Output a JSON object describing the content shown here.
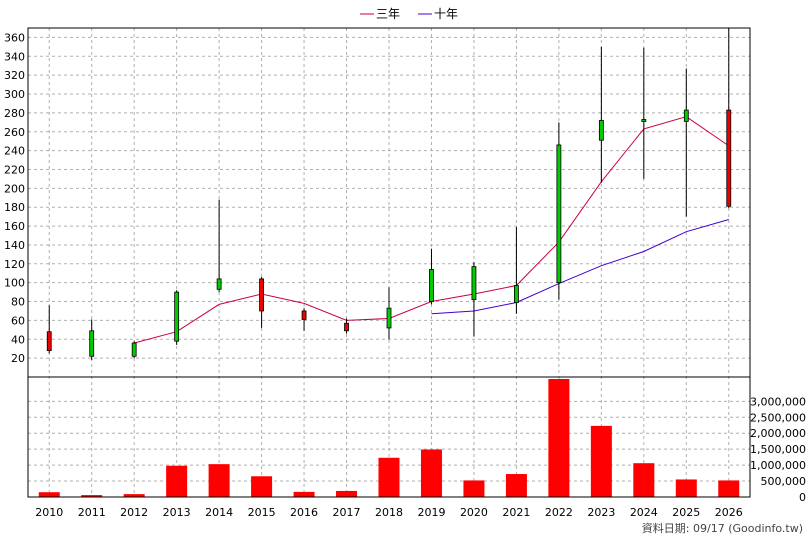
{
  "chart_data": {
    "type": "candlestick",
    "categories": [
      "2010",
      "2011",
      "2012",
      "2013",
      "2014",
      "2015",
      "2016",
      "2017",
      "2018",
      "2019",
      "2020",
      "2021",
      "2022",
      "2023",
      "2024",
      "2025",
      "2026"
    ],
    "candles": [
      {
        "open": 48,
        "close": 28,
        "high": 76,
        "low": 25
      },
      {
        "open": 22,
        "close": 49,
        "high": 61,
        "low": 18
      },
      {
        "open": 22,
        "close": 36,
        "high": 38,
        "low": 20
      },
      {
        "open": 38,
        "close": 90,
        "high": 92,
        "low": 34
      },
      {
        "open": 93,
        "close": 104,
        "high": 188,
        "low": 90
      },
      {
        "open": 104,
        "close": 70,
        "high": 106,
        "low": 52
      },
      {
        "open": 70,
        "close": 61,
        "high": 73,
        "low": 49
      },
      {
        "open": 57,
        "close": 49,
        "high": 62,
        "low": 46
      },
      {
        "open": 52,
        "close": 73,
        "high": 95,
        "low": 40
      },
      {
        "open": 80,
        "close": 114,
        "high": 136,
        "low": 77
      },
      {
        "open": 82,
        "close": 117,
        "high": 122,
        "low": 43
      },
      {
        "open": 79,
        "close": 97,
        "high": 159,
        "low": 67
      },
      {
        "open": 100,
        "close": 246,
        "high": 270,
        "low": 82
      },
      {
        "open": 251,
        "close": 272,
        "high": 350,
        "low": 206
      },
      {
        "open": 271,
        "close": 273,
        "high": 349,
        "low": 210
      },
      {
        "open": 271,
        "close": 283,
        "high": 327,
        "low": 170
      },
      {
        "open": 283,
        "close": 181,
        "high": 370,
        "low": 179
      }
    ],
    "series": [
      {
        "name": "三年",
        "color": "#cc0044",
        "values": [
          null,
          null,
          36,
          48,
          77,
          88,
          78,
          60,
          62,
          80,
          88,
          97,
          143,
          207,
          263,
          276,
          245
        ]
      },
      {
        "name": "十年",
        "color": "#4400cc",
        "values": [
          null,
          null,
          null,
          null,
          null,
          null,
          null,
          null,
          null,
          67,
          70,
          79,
          99,
          118,
          133,
          154,
          167
        ]
      }
    ],
    "volume": [
      150000,
      60000,
      90000,
      980000,
      1030000,
      650000,
      160000,
      190000,
      1230000,
      1490000,
      520000,
      720000,
      3700000,
      2230000,
      1060000,
      550000,
      520000
    ],
    "price_ylim": [
      0,
      370
    ],
    "price_ticks": [
      20,
      40,
      60,
      80,
      100,
      120,
      140,
      160,
      180,
      200,
      220,
      240,
      260,
      280,
      300,
      320,
      340,
      360
    ],
    "volume_ylim": [
      0,
      3700000
    ],
    "volume_tick_labels": [
      "0",
      "500,000",
      "1,000,000",
      "1,500,000",
      "2,000,000",
      "2,500,000",
      "3,000,000"
    ],
    "volume_ticks": [
      0,
      500000,
      1000000,
      1500000,
      2000000,
      2500000,
      3000000
    ],
    "up_color": "#00cc00",
    "down_color": "#ee0000",
    "volume_color": "#ff0000",
    "grid": true,
    "legend_position": "top"
  },
  "source_note": "資料日期: 09/17  (Goodinfo.tw)"
}
